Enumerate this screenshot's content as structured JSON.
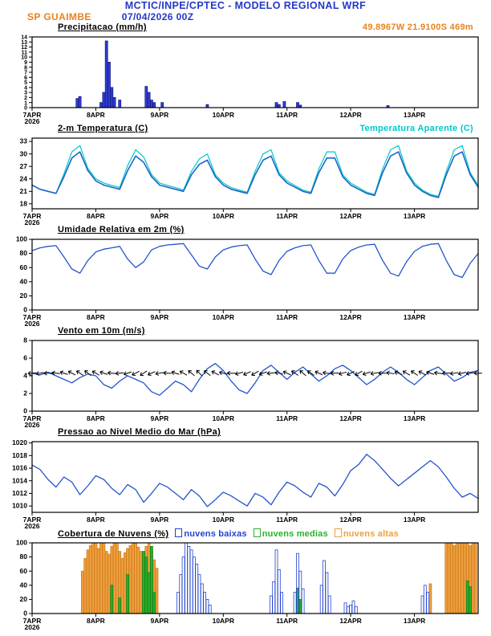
{
  "header": {
    "title": "MCTIC/INPE/CPTEC - MODELO REGIONAL WRF",
    "station": "SP GUAIMBE",
    "run": "07/04/2026 00Z",
    "location": "49.8967W 21.9100S 469m",
    "colors": {
      "blue": "#2438c8",
      "orange": "#e8821e",
      "cyan": "#00c8c8"
    }
  },
  "axis": {
    "hours": 168,
    "day_ticks": [
      0,
      24,
      48,
      72,
      96,
      120,
      144
    ],
    "labels": [
      "7APR",
      "8APR",
      "9APR",
      "10APR",
      "11APR",
      "12APR",
      "13APR"
    ],
    "year": "2026"
  },
  "chart_data": [
    {
      "type": "bar",
      "title": "Precipitacao (mm/h)",
      "ylim": [
        0,
        14
      ],
      "yticks": [
        0,
        1,
        2,
        3,
        4,
        5,
        6,
        7,
        8,
        9,
        10,
        11,
        12,
        13,
        14
      ],
      "ytick_font": 7,
      "series": [
        {
          "name": "precipitation",
          "type": "bar",
          "fill": "#3040d0",
          "stroke": "#1a1a8c",
          "points": [
            [
              17,
              1.8
            ],
            [
              18,
              2.2
            ],
            [
              26,
              1.0
            ],
            [
              27,
              3.0
            ],
            [
              28,
              13.2
            ],
            [
              29,
              9.0
            ],
            [
              30,
              4.0
            ],
            [
              31,
              2.0
            ],
            [
              33,
              1.5
            ],
            [
              43,
              4.2
            ],
            [
              44,
              3.0
            ],
            [
              45,
              1.5
            ],
            [
              46,
              1.0
            ],
            [
              49,
              1.0
            ],
            [
              66,
              0.6
            ],
            [
              92,
              1.0
            ],
            [
              93,
              0.6
            ],
            [
              95,
              1.2
            ],
            [
              100,
              1.0
            ],
            [
              101,
              0.5
            ],
            [
              134,
              0.4
            ]
          ]
        }
      ]
    },
    {
      "type": "line",
      "title": "2-m Temperatura (C)",
      "right_label": {
        "text": "Temperatura Aparente (C)",
        "color": "#00c8c8"
      },
      "ylim": [
        16.8,
        33.8
      ],
      "yticks": [
        18,
        21,
        24,
        27,
        30,
        33
      ],
      "series": [
        {
          "name": "apparent-temperature",
          "type": "line",
          "color": "#00c8c8",
          "width": 1.2,
          "t0": 0,
          "dt": 3,
          "values": [
            22.5,
            21.5,
            21.0,
            20.5,
            25.2,
            30.5,
            32.0,
            26.5,
            24.0,
            23.0,
            22.4,
            21.9,
            27.2,
            31.0,
            29.3,
            25.0,
            23.0,
            22.4,
            21.9,
            21.3,
            25.8,
            28.8,
            30.0,
            25.0,
            23.0,
            21.9,
            21.3,
            20.8,
            25.8,
            30.0,
            31.0,
            25.5,
            23.5,
            22.4,
            21.3,
            20.8,
            26.4,
            30.5,
            30.5,
            25.0,
            23.0,
            21.9,
            20.8,
            20.3,
            26.4,
            31.0,
            32.0,
            26.0,
            23.0,
            21.3,
            20.3,
            19.8,
            25.8,
            31.0,
            32.0,
            25.5,
            22.4
          ]
        },
        {
          "name": "temperature-2m",
          "type": "line",
          "color": "#1e64c8",
          "width": 1.6,
          "t0": 0,
          "dt": 3,
          "values": [
            22.5,
            21.5,
            21.0,
            20.5,
            24.5,
            29.0,
            30.5,
            26.0,
            23.5,
            22.5,
            22.0,
            21.5,
            26.0,
            29.5,
            28.0,
            24.5,
            22.5,
            22.0,
            21.5,
            21.0,
            25.0,
            27.5,
            28.5,
            24.5,
            22.5,
            21.5,
            21.0,
            20.5,
            25.0,
            28.5,
            29.5,
            25.0,
            23.0,
            22.0,
            21.0,
            20.5,
            25.5,
            29.0,
            29.0,
            24.5,
            22.5,
            21.5,
            20.5,
            20.0,
            25.5,
            29.5,
            30.5,
            25.5,
            22.5,
            21.0,
            20.0,
            19.5,
            25.0,
            29.5,
            30.5,
            25.0,
            22.0
          ]
        }
      ]
    },
    {
      "type": "line",
      "title": "Umidade Relativa em 2m (%)",
      "ylim": [
        0,
        100
      ],
      "yticks": [
        0,
        20,
        40,
        60,
        80,
        100
      ],
      "series": [
        {
          "name": "relative-humidity",
          "type": "line",
          "color": "#2255cc",
          "width": 1.3,
          "t0": 0,
          "dt": 3,
          "values": [
            84,
            88,
            90,
            91,
            75,
            58,
            52,
            70,
            82,
            86,
            88,
            90,
            72,
            60,
            68,
            85,
            90,
            92,
            93,
            94,
            78,
            62,
            58,
            75,
            85,
            89,
            91,
            92,
            72,
            55,
            50,
            70,
            83,
            88,
            91,
            92,
            70,
            52,
            52,
            72,
            84,
            89,
            92,
            93,
            70,
            52,
            48,
            68,
            83,
            90,
            93,
            94,
            70,
            50,
            46,
            66,
            80
          ]
        }
      ]
    },
    {
      "type": "line",
      "title": "Vento em 10m (m/s)",
      "ylim": [
        0,
        8
      ],
      "yticks": [
        0,
        2,
        4,
        6,
        8
      ],
      "series": [
        {
          "name": "wind-speed",
          "type": "line",
          "color": "#2255cc",
          "width": 1.3,
          "t0": 0,
          "dt": 3,
          "values": [
            4.3,
            4.1,
            4.4,
            4.0,
            3.6,
            3.2,
            3.8,
            4.2,
            4.0,
            3.0,
            2.6,
            3.4,
            4.0,
            3.6,
            3.2,
            2.2,
            1.8,
            2.6,
            3.4,
            3.0,
            2.2,
            3.6,
            4.8,
            5.4,
            4.6,
            3.4,
            2.4,
            2.0,
            3.2,
            4.6,
            5.2,
            4.4,
            3.6,
            4.4,
            5.0,
            4.2,
            3.4,
            4.0,
            4.8,
            5.2,
            4.6,
            3.8,
            3.0,
            3.6,
            4.4,
            5.0,
            4.4,
            3.6,
            3.0,
            3.8,
            4.6,
            5.0,
            4.2,
            3.4,
            3.8,
            4.4,
            4.6
          ]
        },
        {
          "name": "wind-direction-barbs",
          "type": "barb",
          "color": "#000000",
          "v": 4.3,
          "t0": 0,
          "dt": 3,
          "angles": [
            185,
            190,
            182,
            172,
            162,
            152,
            146,
            142,
            150,
            162,
            174,
            186,
            198,
            208,
            214,
            204,
            190,
            176,
            162,
            150,
            140,
            136,
            142,
            152,
            166,
            180,
            194,
            204,
            210,
            200,
            186,
            170,
            156,
            146,
            140,
            146,
            156,
            170,
            184,
            196,
            206,
            210,
            200,
            190,
            180,
            170,
            160,
            150,
            146,
            152,
            162,
            172,
            182,
            190,
            194,
            186,
            180
          ]
        }
      ]
    },
    {
      "type": "line",
      "title": "Pressao ao Nivel Medio do Mar (hPa)",
      "ylim": [
        1009,
        1020.2
      ],
      "yticks": [
        1010,
        1012,
        1014,
        1016,
        1018,
        1020
      ],
      "series": [
        {
          "name": "mean-sea-level-pressure",
          "type": "line",
          "color": "#2255cc",
          "width": 1.3,
          "t0": 0,
          "dt": 3,
          "values": [
            1016.5,
            1015.8,
            1014.2,
            1013.0,
            1014.6,
            1013.8,
            1011.8,
            1013.2,
            1014.8,
            1014.2,
            1012.8,
            1011.8,
            1013.4,
            1012.6,
            1010.6,
            1012.0,
            1013.6,
            1013.0,
            1012.0,
            1011.0,
            1012.6,
            1011.6,
            1009.9,
            1011.0,
            1012.2,
            1011.6,
            1010.8,
            1010.0,
            1012.0,
            1011.4,
            1010.2,
            1012.2,
            1013.8,
            1013.2,
            1012.2,
            1011.4,
            1013.6,
            1013.0,
            1011.6,
            1013.4,
            1015.6,
            1016.6,
            1018.2,
            1017.2,
            1015.8,
            1014.4,
            1013.2,
            1014.2,
            1015.2,
            1016.2,
            1017.2,
            1016.2,
            1014.6,
            1012.8,
            1011.4,
            1012.0,
            1011.2
          ]
        }
      ]
    },
    {
      "type": "bar",
      "title": "Cobertura de Nuvens (%)",
      "legend": [
        {
          "label": "nuvens baixas",
          "color": "#2244cc"
        },
        {
          "label": "nuvens medias",
          "color": "#2ab02a"
        },
        {
          "label": "nuvens altas",
          "color": "#ef9f3e"
        }
      ],
      "ylim": [
        0,
        100
      ],
      "yticks": [
        0,
        20,
        40,
        60,
        80,
        100
      ],
      "series": [
        {
          "name": "nuvens-altas",
          "type": "bar",
          "fill": "#ef9f3e",
          "stroke": "#d08020",
          "points": [
            [
              19,
              60
            ],
            [
              20,
              78
            ],
            [
              21,
              90
            ],
            [
              22,
              96
            ],
            [
              23,
              100
            ],
            [
              24,
              100
            ],
            [
              25,
              92
            ],
            [
              26,
              100
            ],
            [
              27,
              100
            ],
            [
              28,
              88
            ],
            [
              29,
              84
            ],
            [
              30,
              95
            ],
            [
              31,
              100
            ],
            [
              32,
              100
            ],
            [
              33,
              88
            ],
            [
              34,
              78
            ],
            [
              35,
              86
            ],
            [
              36,
              92
            ],
            [
              37,
              96
            ],
            [
              38,
              100
            ],
            [
              39,
              100
            ],
            [
              40,
              94
            ],
            [
              41,
              88
            ],
            [
              42,
              84
            ],
            [
              43,
              95
            ],
            [
              44,
              100
            ],
            [
              45,
              88
            ],
            [
              46,
              76
            ],
            [
              47,
              64
            ],
            [
              150,
              42
            ],
            [
              156,
              100
            ],
            [
              157,
              100
            ],
            [
              158,
              100
            ],
            [
              159,
              96
            ],
            [
              160,
              100
            ],
            [
              161,
              100
            ],
            [
              162,
              100
            ],
            [
              163,
              100
            ],
            [
              164,
              100
            ],
            [
              165,
              96
            ],
            [
              166,
              100
            ],
            [
              167,
              100
            ]
          ]
        },
        {
          "name": "nuvens-medias",
          "type": "bar",
          "fill": "#2ab02a",
          "stroke": "#188018",
          "points": [
            [
              30,
              40
            ],
            [
              33,
              22
            ],
            [
              36,
              55
            ],
            [
              42,
              88
            ],
            [
              43,
              80
            ],
            [
              44,
              58
            ],
            [
              45,
              95
            ],
            [
              46,
              30
            ],
            [
              100,
              36
            ],
            [
              101,
              20
            ],
            [
              164,
              46
            ],
            [
              165,
              38
            ]
          ]
        },
        {
          "name": "nuvens-baixas",
          "type": "bar",
          "fill": "none",
          "stroke": "#2244cc",
          "points": [
            [
              55,
              30
            ],
            [
              56,
              55
            ],
            [
              57,
              80
            ],
            [
              58,
              100
            ],
            [
              59,
              95
            ],
            [
              60,
              90
            ],
            [
              61,
              80
            ],
            [
              62,
              70
            ],
            [
              63,
              55
            ],
            [
              64,
              42
            ],
            [
              65,
              30
            ],
            [
              66,
              20
            ],
            [
              67,
              12
            ],
            [
              90,
              25
            ],
            [
              91,
              45
            ],
            [
              92,
              90
            ],
            [
              93,
              62
            ],
            [
              94,
              30
            ],
            [
              99,
              30
            ],
            [
              100,
              85
            ],
            [
              101,
              60
            ],
            [
              102,
              35
            ],
            [
              109,
              40
            ],
            [
              110,
              75
            ],
            [
              111,
              58
            ],
            [
              112,
              25
            ],
            [
              118,
              15
            ],
            [
              119,
              10
            ],
            [
              120,
              12
            ],
            [
              121,
              18
            ],
            [
              122,
              10
            ],
            [
              147,
              25
            ],
            [
              148,
              40
            ],
            [
              149,
              30
            ]
          ]
        }
      ]
    }
  ]
}
